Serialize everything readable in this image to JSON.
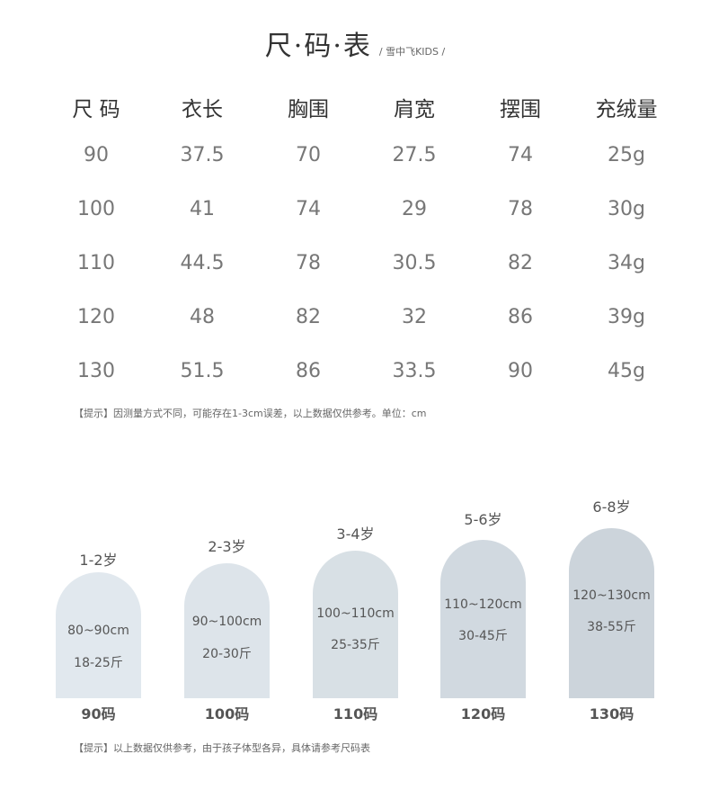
{
  "title": "尺·码·表",
  "brand": "/ 雪中飞KIDS /",
  "table": {
    "headers": [
      "尺 码",
      "衣长",
      "胸围",
      "肩宽",
      "摆围",
      "充绒量"
    ],
    "rows": [
      [
        "90",
        "37.5",
        "70",
        "27.5",
        "74",
        "25g"
      ],
      [
        "100",
        "41",
        "74",
        "29",
        "78",
        "30g"
      ],
      [
        "110",
        "44.5",
        "78",
        "30.5",
        "82",
        "34g"
      ],
      [
        "120",
        "48",
        "82",
        "32",
        "86",
        "39g"
      ],
      [
        "130",
        "51.5",
        "86",
        "33.5",
        "90",
        "45g"
      ]
    ]
  },
  "note1": "【提示】因测量方式不同，可能存在1-3cm误差，以上数据仅供参考。单位：cm",
  "guide": [
    {
      "age": "1-2岁",
      "height": "80~90cm",
      "weight": "18-25斤",
      "size": "90码",
      "color": "#e1e8ee"
    },
    {
      "age": "2-3岁",
      "height": "90~100cm",
      "weight": "20-30斤",
      "size": "100码",
      "color": "#dde4ea"
    },
    {
      "age": "3-4岁",
      "height": "100~110cm",
      "weight": "25-35斤",
      "size": "110码",
      "color": "#d8e0e5"
    },
    {
      "age": "5-6岁",
      "height": "110~120cm",
      "weight": "30-45斤",
      "size": "120码",
      "color": "#d1d9e0"
    },
    {
      "age": "6-8岁",
      "height": "120~130cm",
      "weight": "38-55斤",
      "size": "130码",
      "color": "#ccd4db"
    }
  ],
  "note2": "【提示】以上数据仅供参考，由于孩子体型各异，具体请参考尺码表"
}
